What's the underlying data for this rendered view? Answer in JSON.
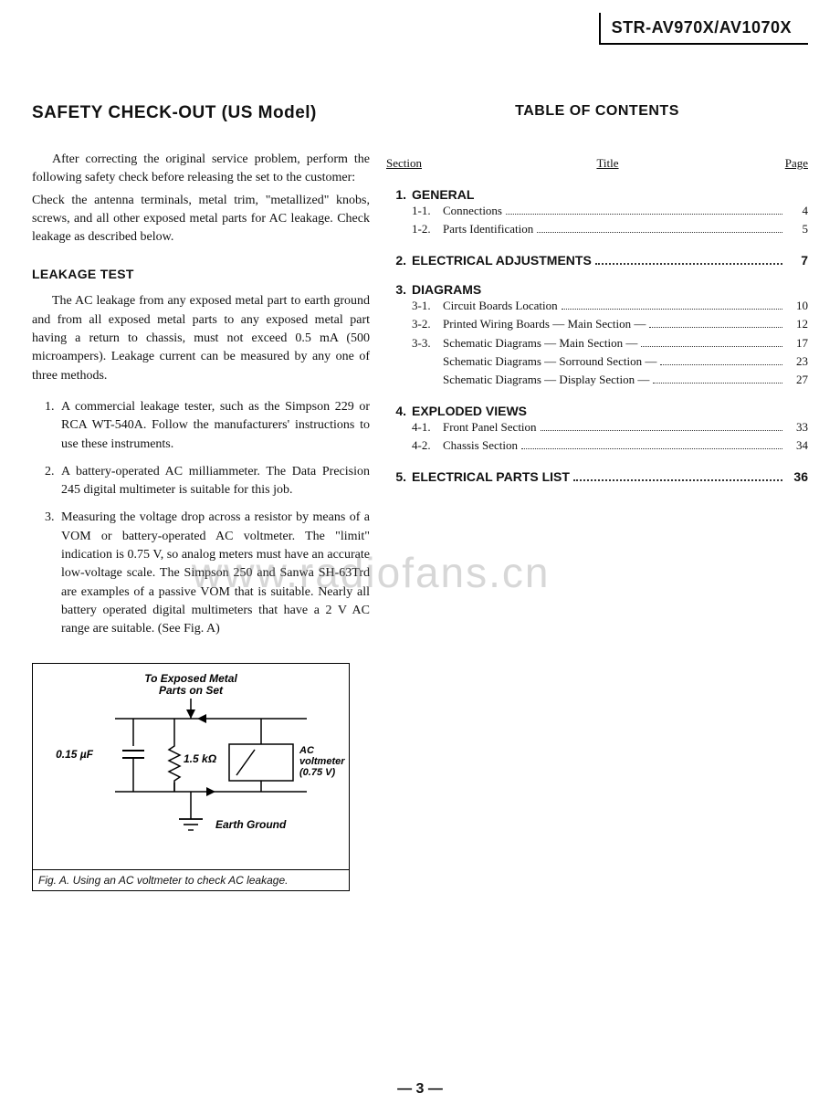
{
  "header": {
    "model": "STR-AV970X/AV1070X"
  },
  "left": {
    "title": "SAFETY CHECK-OUT  (US Model)",
    "intro1": "After correcting the original service problem, perform the following safety check before releasing the set to the customer:",
    "intro2": "Check the antenna terminals, metal trim, \"metallized\" knobs, screws, and all other exposed metal parts for AC leakage. Check leakage as described below.",
    "leakage_heading": "LEAKAGE TEST",
    "leakage_para": "The AC leakage from any exposed metal part to earth ground and from all exposed metal parts to any exposed metal part having a return to chassis, must not exceed 0.5 mA (500 microampers).  Leakage current can be measured by any one of three methods.",
    "methods": [
      "A commercial leakage tester, such as the Simpson 229 or RCA WT-540A. Follow the manufacturers' instructions to use these instruments.",
      "A battery-operated AC milliammeter. The Data Precision 245 digital multimeter is suitable for this job.",
      "Measuring the voltage drop across a resistor by means of a VOM or battery-operated AC voltmeter.  The \"limit\" indication is 0.75 V, so analog meters must have an accurate low-voltage scale.  The Simpson 250 and Sanwa SH-63Trd are examples of a passive VOM that is suitable. Nearly all battery operated digital multimeters that have a 2 V AC range are suitable.  (See Fig. A)"
    ],
    "figure": {
      "top_label1": "To Exposed Metal",
      "top_label2": "Parts on Set",
      "cap_label": "0.15 µF",
      "res_label": "1.5 kΩ",
      "meter_label1": "AC",
      "meter_label2": "voltmeter",
      "meter_label3": "(0.75 V)",
      "ground_label": "Earth Ground",
      "caption": "Fig. A.   Using an AC voltmeter to check AC leakage."
    }
  },
  "toc": {
    "title": "TABLE OF CONTENTS",
    "header": {
      "section": "Section",
      "title": "Title",
      "page": "Page"
    },
    "sections": [
      {
        "num": "1.",
        "label": "GENERAL",
        "page": "",
        "subs": [
          {
            "num": "1-1.",
            "label": "Connections",
            "page": "4"
          },
          {
            "num": "1-2.",
            "label": "Parts Identification",
            "page": "5"
          }
        ]
      },
      {
        "num": "2.",
        "label": "ELECTRICAL ADJUSTMENTS",
        "page": "7",
        "subs": []
      },
      {
        "num": "3.",
        "label": "DIAGRAMS",
        "page": "",
        "subs": [
          {
            "num": "3-1.",
            "label": "Circuit Boards Location",
            "page": "10"
          },
          {
            "num": "3-2.",
            "label": "Printed Wiring Boards  — Main Section —",
            "page": "12"
          },
          {
            "num": "3-3.",
            "label": "Schematic Diagrams  — Main Section —",
            "page": "17"
          },
          {
            "num": "",
            "label": "Schematic Diagrams  — Sorround Section —",
            "page": "23"
          },
          {
            "num": "",
            "label": "Schematic Diagrams  — Display Section —",
            "page": "27"
          }
        ]
      },
      {
        "num": "4.",
        "label": "EXPLODED VIEWS",
        "page": "",
        "subs": [
          {
            "num": "4-1.",
            "label": "Front Panel Section",
            "page": "33"
          },
          {
            "num": "4-2.",
            "label": "Chassis Section",
            "page": "34"
          }
        ]
      },
      {
        "num": "5.",
        "label": "ELECTRICAL PARTS LIST",
        "page": "36",
        "subs": []
      }
    ]
  },
  "watermark": "www.radiofans.cn",
  "page_number": "— 3 —"
}
